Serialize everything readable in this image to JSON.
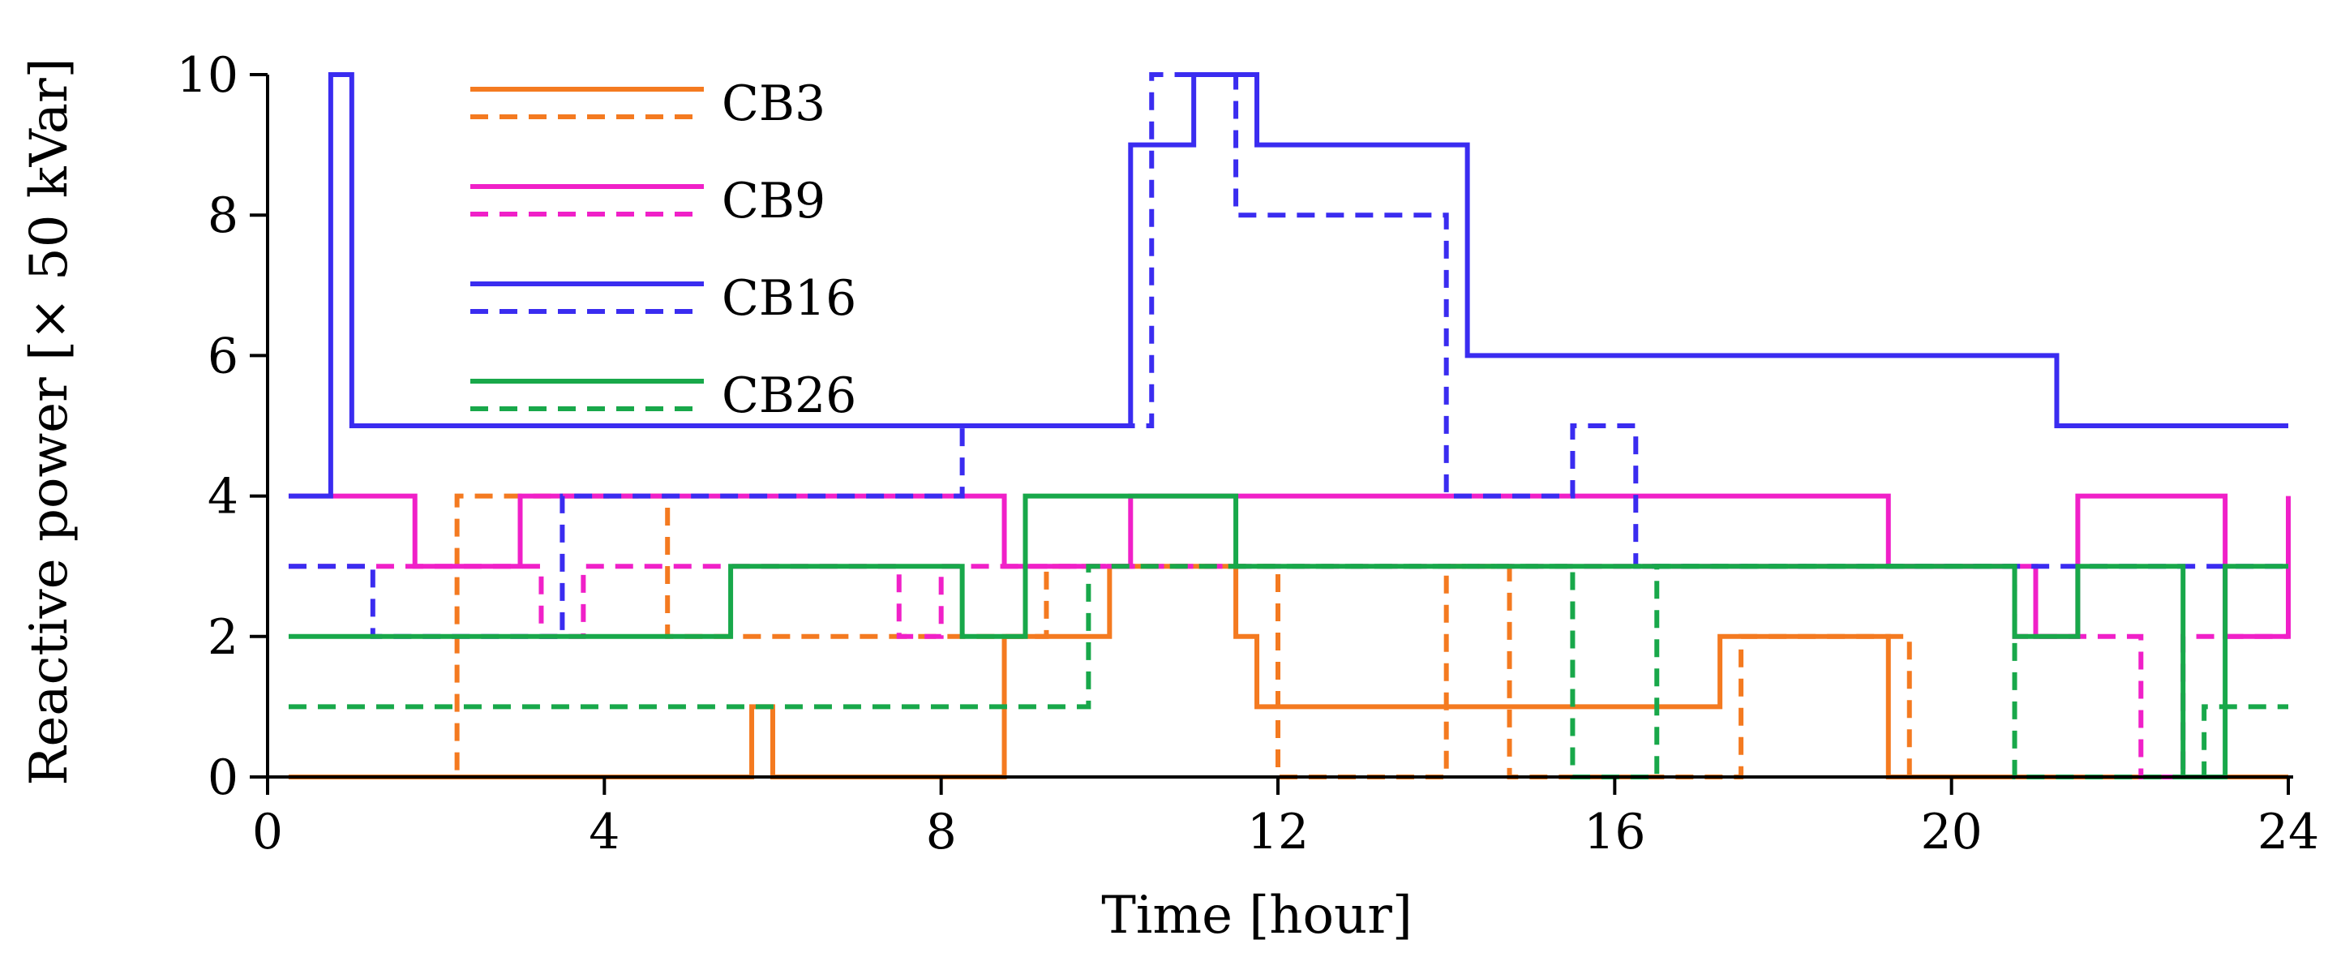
{
  "chart_data": {
    "type": "line",
    "step": true,
    "xlabel": "Time [hour]",
    "ylabel": "Reactive power  [× 50 kVar]",
    "xlim": [
      0,
      24
    ],
    "ylim": [
      0,
      10
    ],
    "xticks": [
      0,
      4,
      8,
      12,
      16,
      20,
      24
    ],
    "yticks": [
      0,
      2,
      4,
      6,
      8,
      10
    ],
    "grid": false,
    "legend": {
      "position": "top-left",
      "entries": [
        {
          "label": "CB3",
          "color": "#f47a20"
        },
        {
          "label": "CB9",
          "color": "#f020c8"
        },
        {
          "label": "CB16",
          "color": "#3a2cf0"
        },
        {
          "label": "CB26",
          "color": "#18a84a"
        }
      ]
    },
    "series": [
      {
        "group": "CB3",
        "style": "solid",
        "color": "#f47a20",
        "x": [
          0.25,
          5.75,
          6.0,
          8.75,
          10.0,
          11.5,
          11.75,
          17.25,
          19.25,
          24.0
        ],
        "y": [
          0,
          1,
          0,
          2,
          3,
          2,
          1,
          2,
          0,
          0
        ]
      },
      {
        "group": "CB3",
        "style": "dashed",
        "color": "#f47a20",
        "x": [
          0.25,
          2.25,
          4.75,
          9.25,
          12.0,
          14.0,
          14.75,
          17.5,
          19.5,
          24.0
        ],
        "y": [
          0,
          4,
          2,
          3,
          0,
          3,
          0,
          2,
          0,
          0
        ]
      },
      {
        "group": "CB9",
        "style": "solid",
        "color": "#f020c8",
        "x": [
          0.25,
          1.75,
          3.0,
          8.75,
          10.25,
          19.25,
          21.0,
          21.5,
          23.25,
          24.0
        ],
        "y": [
          4,
          3,
          4,
          3,
          4,
          3,
          2,
          4,
          2,
          4
        ]
      },
      {
        "group": "CB9",
        "style": "dashed",
        "color": "#f020c8",
        "x": [
          0.25,
          3.25,
          3.75,
          7.5,
          8.0,
          20.75,
          22.25,
          22.75,
          24.0
        ],
        "y": [
          3,
          2,
          3,
          2,
          3,
          2,
          0,
          2,
          2
        ]
      },
      {
        "group": "CB16",
        "style": "solid",
        "color": "#3a2cf0",
        "x": [
          0.25,
          0.75,
          1.0,
          10.25,
          11.0,
          11.75,
          14.25,
          21.25,
          24.0
        ],
        "y": [
          4,
          10,
          5,
          9,
          10,
          9,
          6,
          5,
          5
        ]
      },
      {
        "group": "CB16",
        "style": "dashed",
        "color": "#3a2cf0",
        "x": [
          0.25,
          1.25,
          3.5,
          8.25,
          10.5,
          11.5,
          14.0,
          15.5,
          16.25,
          24.0
        ],
        "y": [
          3,
          2,
          4,
          5,
          10,
          8,
          4,
          5,
          3,
          3
        ]
      },
      {
        "group": "CB26",
        "style": "solid",
        "color": "#18a84a",
        "x": [
          0.25,
          5.5,
          8.25,
          9.0,
          11.5,
          20.75,
          21.5,
          22.75,
          23.25,
          24.0
        ],
        "y": [
          2,
          3,
          2,
          4,
          3,
          2,
          3,
          0,
          3,
          3
        ]
      },
      {
        "group": "CB26",
        "style": "dashed",
        "color": "#18a84a",
        "x": [
          0.25,
          9.75,
          15.5,
          16.5,
          20.75,
          23.0,
          24.0
        ],
        "y": [
          1,
          3,
          0,
          3,
          0,
          1,
          1
        ]
      }
    ]
  }
}
